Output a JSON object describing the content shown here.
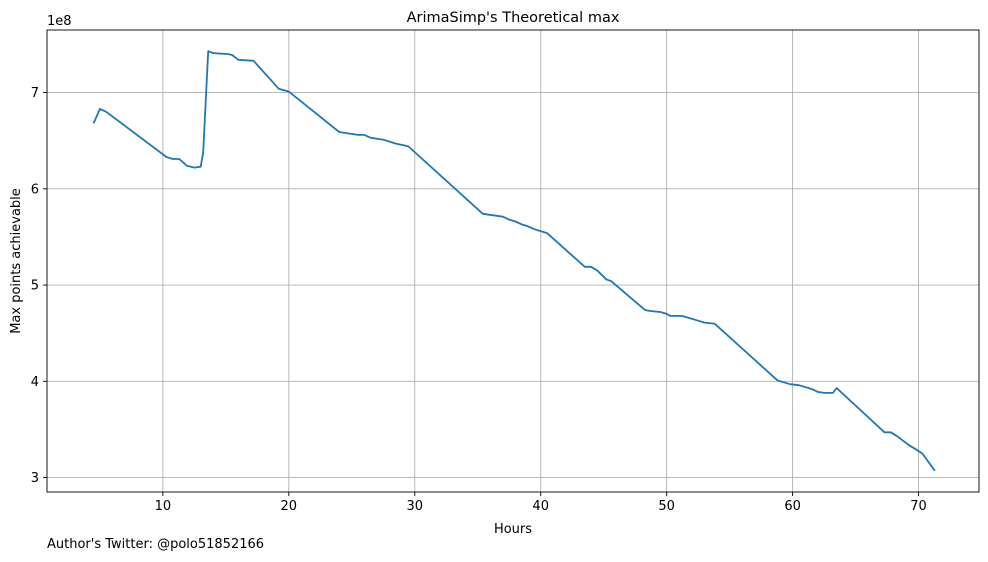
{
  "chart_data": {
    "type": "line",
    "title": "ArimaSimp's Theoretical max",
    "xlabel": "Hours",
    "ylabel": "Max points achievable",
    "y_scale_label": "1e8",
    "xlim": [
      0.8,
      74.8
    ],
    "ylim": [
      2.85,
      7.65
    ],
    "xticks": [
      10,
      20,
      30,
      40,
      50,
      60,
      70
    ],
    "xtick_labels": [
      "10",
      "20",
      "30",
      "40",
      "50",
      "60",
      "70"
    ],
    "yticks": [
      3,
      4,
      5,
      6,
      7
    ],
    "ytick_labels": [
      "3",
      "4",
      "5",
      "6",
      "7"
    ],
    "grid": true,
    "line_color": "#1f77b4",
    "series": [
      {
        "x": [
          4.5,
          5.0,
          5.5,
          10.3,
          10.8,
          11.3,
          11.9,
          12.5,
          13.0,
          13.2,
          13.6,
          14.0,
          15.2,
          15.5,
          16.0,
          17.2,
          19.2,
          20.0,
          24.0,
          24.5,
          25.5,
          26.0,
          26.5,
          27.5,
          28.5,
          29.2,
          29.5,
          35.4,
          37.0,
          37.5,
          38.0,
          38.5,
          39.0,
          39.5,
          40.0,
          40.5,
          43.5,
          44.0,
          44.5,
          45.2,
          45.6,
          48.3,
          48.8,
          49.5,
          50.0,
          50.3,
          51.2,
          52.0,
          52.5,
          53.0,
          53.8,
          58.8,
          59.3,
          59.8,
          60.5,
          61.0,
          61.3,
          61.7,
          62.0,
          62.5,
          63.2,
          63.5,
          67.3,
          67.8,
          68.3,
          69.2,
          69.7,
          70.3,
          71.3
        ],
        "y": [
          6.68,
          6.83,
          6.8,
          6.33,
          6.31,
          6.31,
          6.24,
          6.22,
          6.23,
          6.38,
          7.43,
          7.41,
          7.4,
          7.39,
          7.34,
          7.33,
          7.04,
          7.01,
          6.59,
          6.58,
          6.56,
          6.56,
          6.53,
          6.51,
          6.47,
          6.45,
          6.44,
          5.74,
          5.71,
          5.68,
          5.66,
          5.63,
          5.61,
          5.58,
          5.56,
          5.54,
          5.19,
          5.19,
          5.15,
          5.06,
          5.04,
          4.74,
          4.73,
          4.72,
          4.7,
          4.68,
          4.68,
          4.65,
          4.63,
          4.61,
          4.6,
          4.01,
          3.99,
          3.97,
          3.96,
          3.94,
          3.93,
          3.91,
          3.89,
          3.88,
          3.88,
          3.93,
          3.47,
          3.47,
          3.43,
          3.34,
          3.3,
          3.25,
          3.07
        ]
      }
    ]
  },
  "footer": {
    "author_note": "Author's Twitter: @polo51852166"
  }
}
